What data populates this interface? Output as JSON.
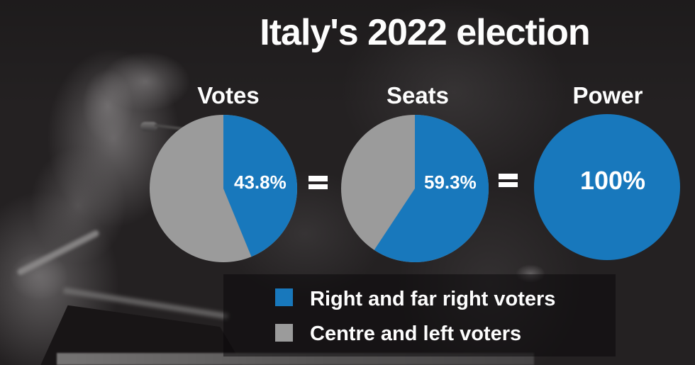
{
  "title": "Italy's 2022 election",
  "colors": {
    "background": "#242122",
    "blue": "#1878bc",
    "gray": "#9b9b9b",
    "text": "#fdfdfd"
  },
  "separators": {
    "equals_icon": "="
  },
  "chart_data": [
    {
      "type": "pie",
      "title": "Votes",
      "value_label": "43.8%",
      "start_angle_deg": 0,
      "direction": "clockwise",
      "slices": [
        {
          "label": "Right and far right voters",
          "value": 43.8,
          "color": "#1878bc"
        },
        {
          "label": "Centre and left voters",
          "value": 56.2,
          "color": "#9b9b9b"
        }
      ]
    },
    {
      "type": "pie",
      "title": "Seats",
      "value_label": "59.3%",
      "start_angle_deg": 0,
      "direction": "clockwise",
      "slices": [
        {
          "label": "Right and far right voters",
          "value": 59.3,
          "color": "#1878bc"
        },
        {
          "label": "Centre and left voters",
          "value": 40.7,
          "color": "#9b9b9b"
        }
      ]
    },
    {
      "type": "pie",
      "title": "Power",
      "value_label": "100%",
      "start_angle_deg": 0,
      "direction": "clockwise",
      "slices": [
        {
          "label": "Right and far right voters",
          "value": 100,
          "color": "#1878bc"
        },
        {
          "label": "Centre and left voters",
          "value": 0,
          "color": "#9b9b9b"
        }
      ]
    }
  ],
  "legend": {
    "items": [
      {
        "label": "Right and far right voters",
        "color": "#1878bc"
      },
      {
        "label": "Centre and left voters",
        "color": "#9b9b9b"
      }
    ]
  }
}
